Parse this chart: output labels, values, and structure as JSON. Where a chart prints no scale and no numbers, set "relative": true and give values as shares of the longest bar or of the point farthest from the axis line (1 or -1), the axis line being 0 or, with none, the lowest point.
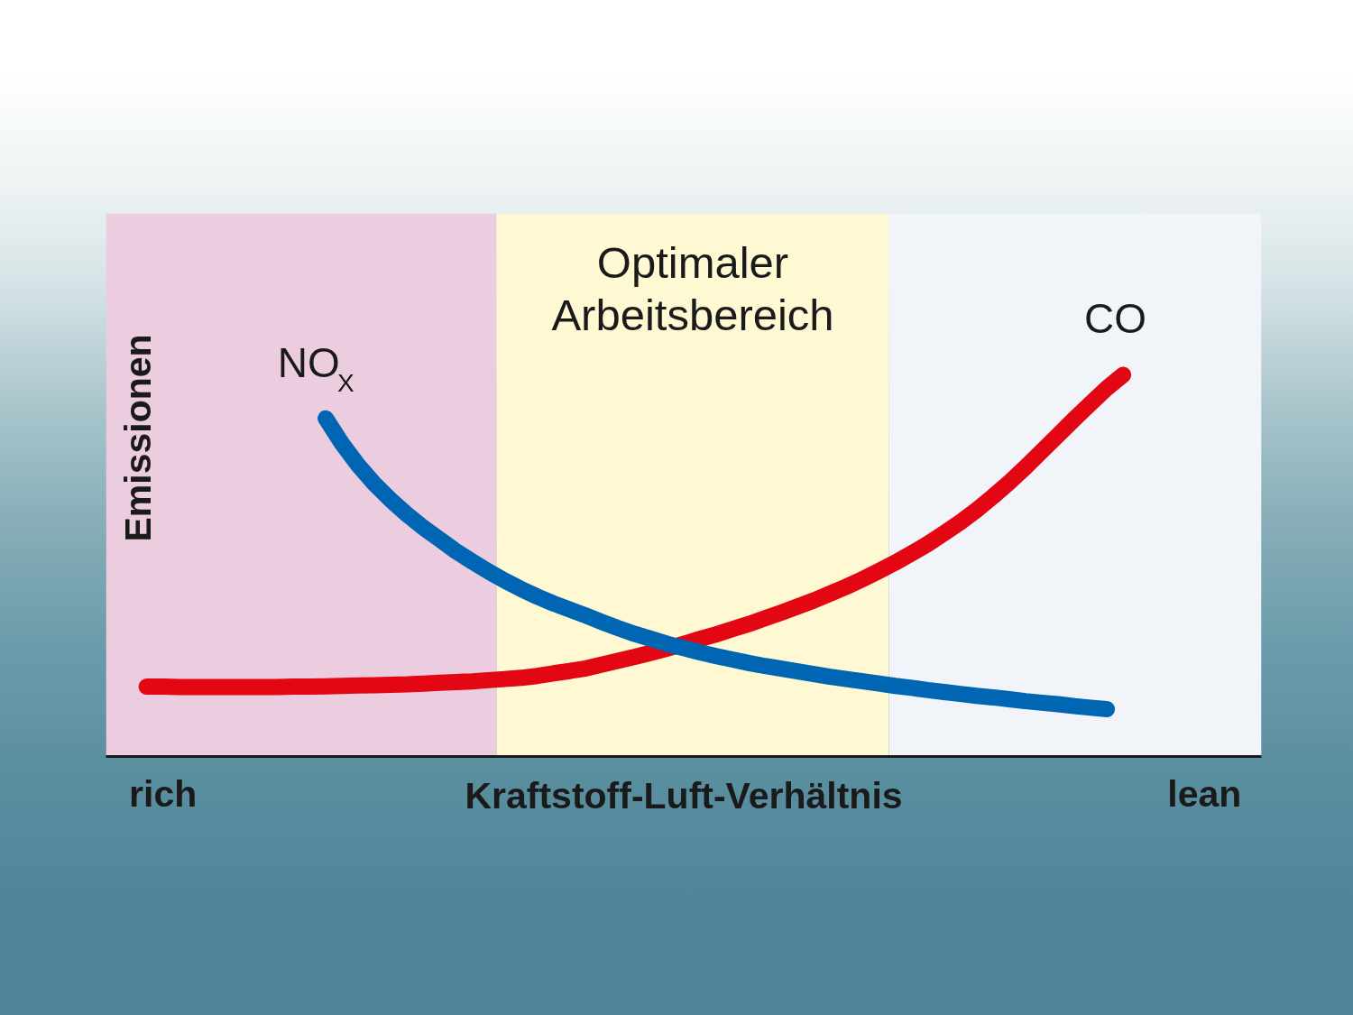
{
  "chart_data": {
    "type": "line",
    "relative": true,
    "xlabel": "Kraftstoff-Luft-Verhältnis",
    "ylabel": "Emissionen",
    "line_style": "solid",
    "annotations": [
      "Optimaler Arbeitsbereich"
    ],
    "categories": [
      null,
      null,
      null,
      "rich",
      null,
      null,
      null,
      null,
      null,
      null,
      null,
      null,
      null,
      null,
      null,
      null,
      null,
      null,
      null,
      null,
      null,
      null,
      null,
      null,
      null,
      null,
      null,
      null,
      null,
      null,
      null,
      null,
      null,
      null,
      null,
      null,
      null,
      null,
      null,
      null,
      null,
      null,
      null,
      null,
      null,
      null,
      null,
      null,
      null,
      null,
      null,
      null,
      null,
      null,
      null,
      null,
      null,
      null,
      null,
      null,
      null,
      null,
      null,
      null,
      null,
      null,
      null,
      "lean",
      null,
      null,
      null
    ],
    "series": [
      {
        "name": "CO",
        "color": "#e30613",
        "values": [
          null,
          null,
          0.183,
          0.183,
          0.182,
          0.182,
          0.182,
          0.182,
          0.182,
          0.182,
          0.182,
          0.183,
          0.183,
          0.184,
          0.185,
          0.186,
          0.187,
          0.188,
          0.189,
          0.191,
          0.193,
          0.195,
          0.197,
          0.2,
          0.203,
          0.206,
          0.211,
          0.218,
          0.224,
          0.231,
          0.241,
          0.251,
          0.261,
          0.272,
          0.283,
          0.295,
          0.308,
          0.32,
          0.334,
          0.347,
          0.362,
          0.377,
          0.393,
          0.409,
          0.427,
          0.445,
          0.465,
          0.486,
          0.508,
          0.532,
          0.557,
          0.585,
          0.614,
          0.646,
          0.681,
          0.718,
          0.758,
          0.8,
          0.842,
          0.884,
          0.925,
          0.965,
          1.0,
          null,
          null,
          null,
          null,
          null,
          null,
          null,
          null
        ]
      },
      {
        "name": "NO$_{X}$",
        "color": "#0066b3",
        "values": [
          null,
          null,
          null,
          null,
          null,
          null,
          null,
          null,
          null,
          null,
          null,
          null,
          null,
          0.886,
          0.82,
          0.763,
          0.714,
          0.672,
          0.634,
          0.6,
          0.569,
          0.538,
          0.511,
          0.485,
          0.461,
          0.439,
          0.419,
          0.401,
          0.385,
          0.369,
          0.352,
          0.336,
          0.321,
          0.308,
          0.295,
          0.284,
          0.273,
          0.263,
          0.254,
          0.245,
          0.237,
          0.23,
          0.223,
          0.216,
          0.209,
          0.203,
          0.197,
          0.191,
          0.185,
          0.18,
          0.174,
          0.169,
          0.164,
          0.159,
          0.155,
          0.15,
          0.145,
          0.141,
          0.137,
          0.132,
          0.128,
          0.124,
          null,
          null,
          null,
          null,
          null,
          null,
          null,
          null,
          null
        ]
      }
    ]
  }
}
